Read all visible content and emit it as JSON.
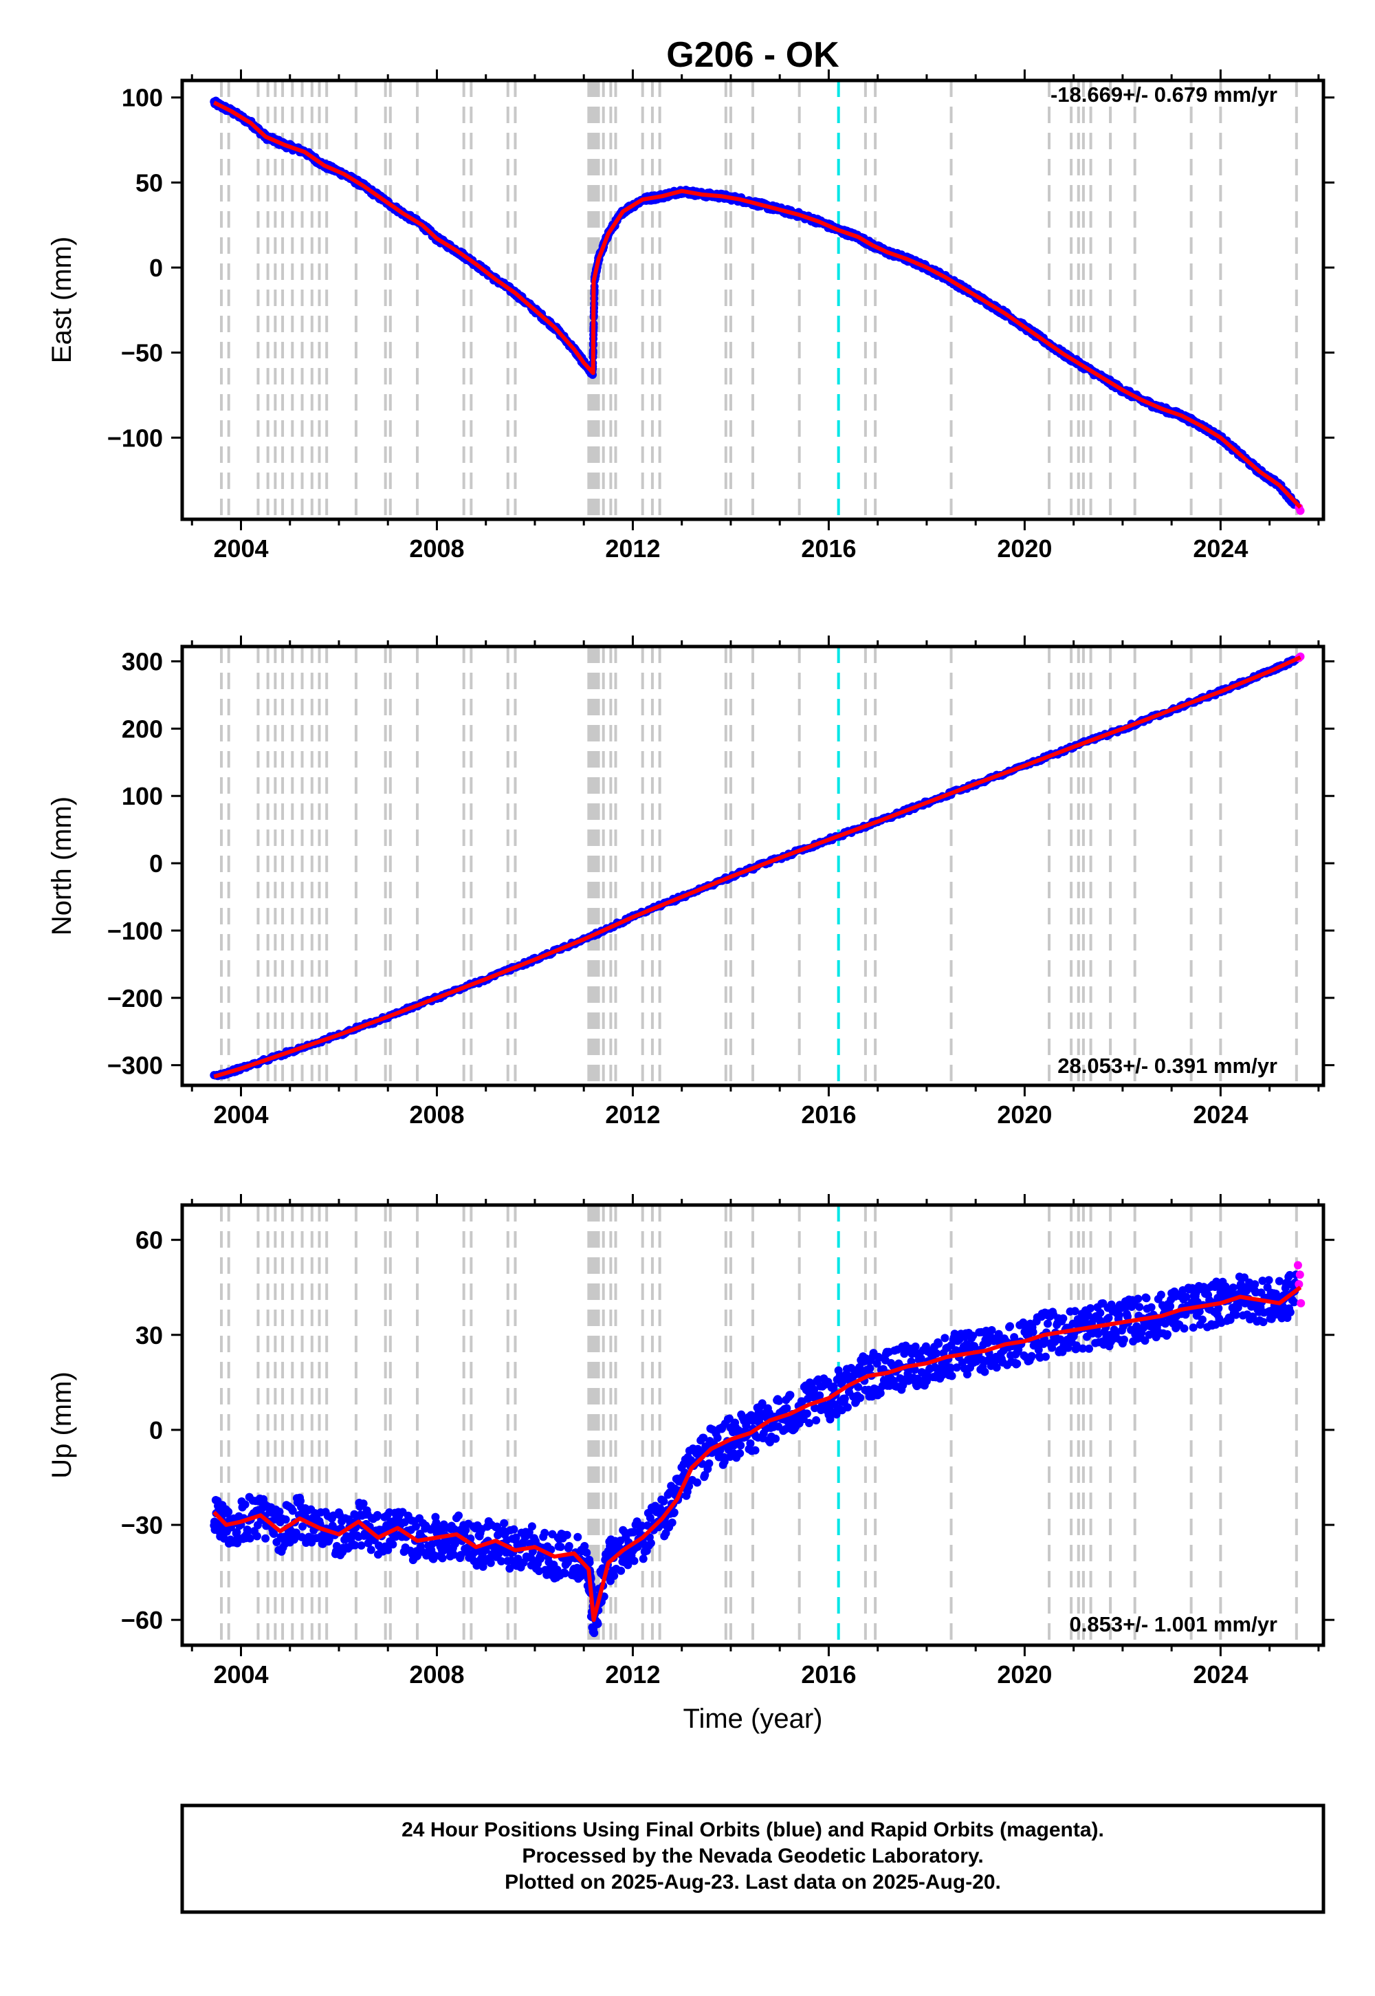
{
  "title": "G206 - OK",
  "x_axis_label": "Time (year)",
  "caption_lines": [
    "24 Hour Positions Using Final Orbits (blue) and Rapid Orbits (magenta).",
    "Processed by the Nevada Geodetic Laboratory.",
    "Plotted on 2025-Aug-23. Last data on 2025-Aug-20."
  ],
  "colors": {
    "final_orbits": "#0000ff",
    "rapid_orbits": "#ff00ff",
    "model": "#ff0000",
    "event_line": "#c8c8c8",
    "highlight_event_line": "#00e6e6"
  },
  "chart_data": [
    {
      "type": "scatter",
      "title": "G206 - OK",
      "ylabel": "East (mm)",
      "xlabel": "",
      "rate_annotation": "-18.669+/- 0.679 mm/yr",
      "xlim": [
        2002.8,
        2026.1
      ],
      "ylim": [
        -148,
        110
      ],
      "xticks": [
        "2004",
        "2008",
        "2012",
        "2016",
        "2020",
        "2024"
      ],
      "yticks": [
        "100",
        "50",
        "0",
        "−50",
        "−100"
      ],
      "ytick_values": [
        100,
        50,
        0,
        -50,
        -100
      ],
      "series": [
        {
          "name": "Final Orbits (blue)",
          "color": "#0000ff",
          "x": [
            2003.45,
            2003.8,
            2004.2,
            2004.5,
            2004.9,
            2005.3,
            2005.7,
            2006.1,
            2006.5,
            2006.9,
            2007.3,
            2007.7,
            2008.0,
            2008.4,
            2008.8,
            2009.2,
            2009.6,
            2010.0,
            2010.4,
            2010.8,
            2011.0,
            2011.18,
            2011.22,
            2011.3,
            2011.5,
            2011.8,
            2012.2,
            2012.6,
            2013.0,
            2013.4,
            2013.8,
            2014.2,
            2014.6,
            2015.0,
            2015.4,
            2015.8,
            2016.2,
            2016.6,
            2016.9,
            2017.2,
            2017.6,
            2018.0,
            2018.4,
            2018.8,
            2019.2,
            2019.6,
            2020.0,
            2020.4,
            2020.8,
            2021.2,
            2021.6,
            2022.0,
            2022.4,
            2022.8,
            2023.2,
            2023.6,
            2024.0,
            2024.4,
            2024.8,
            2025.2,
            2025.55
          ],
          "y": [
            97,
            92,
            85,
            77,
            72,
            68,
            60,
            55,
            48,
            40,
            32,
            25,
            17,
            10,
            2,
            -7,
            -15,
            -25,
            -35,
            -48,
            -56,
            -62,
            -7,
            5,
            20,
            33,
            40,
            42,
            45,
            43,
            42,
            40,
            37,
            34,
            31,
            27,
            22,
            18,
            13,
            9,
            5,
            0,
            -6,
            -13,
            -20,
            -27,
            -35,
            -43,
            -51,
            -58,
            -65,
            -72,
            -78,
            -83,
            -87,
            -93,
            -100,
            -110,
            -120,
            -128,
            -140
          ]
        },
        {
          "name": "Rapid Orbits (magenta)",
          "color": "#ff00ff",
          "x": [
            2025.6,
            2025.63
          ],
          "y": [
            -141,
            -143
          ]
        }
      ],
      "model": {
        "name": "Model",
        "color": "#ff0000",
        "x": [
          2003.45,
          2003.8,
          2004.2,
          2004.5,
          2004.9,
          2005.3,
          2005.7,
          2006.1,
          2006.5,
          2006.9,
          2007.3,
          2007.7,
          2008.0,
          2008.4,
          2008.8,
          2009.2,
          2009.6,
          2010.0,
          2010.4,
          2010.8,
          2011.0,
          2011.19,
          2011.2,
          2011.3,
          2011.5,
          2011.8,
          2012.2,
          2012.6,
          2013.0,
          2013.4,
          2013.8,
          2014.2,
          2014.6,
          2015.0,
          2015.4,
          2015.8,
          2016.2,
          2016.6,
          2016.9,
          2017.2,
          2017.6,
          2018.0,
          2018.4,
          2018.8,
          2019.2,
          2019.6,
          2020.0,
          2020.4,
          2020.8,
          2021.2,
          2021.6,
          2022.0,
          2022.4,
          2022.8,
          2023.2,
          2023.6,
          2024.0,
          2024.4,
          2024.8,
          2025.2,
          2025.63
        ],
        "y": [
          97,
          92,
          85,
          77,
          72,
          68,
          60,
          55,
          48,
          40,
          32,
          25,
          17,
          10,
          2,
          -7,
          -15,
          -25,
          -35,
          -48,
          -56,
          -62,
          -8,
          5,
          20,
          33,
          40,
          42,
          45,
          43,
          42,
          40,
          37,
          34,
          31,
          27,
          22,
          18,
          13,
          9,
          5,
          0,
          -6,
          -13,
          -20,
          -27,
          -35,
          -43,
          -51,
          -58,
          -65,
          -72,
          -78,
          -83,
          -87,
          -93,
          -100,
          -110,
          -120,
          -128,
          -141
        ]
      }
    },
    {
      "type": "scatter",
      "ylabel": "North (mm)",
      "xlabel": "",
      "rate_annotation": "28.053+/- 0.391 mm/yr",
      "xlim": [
        2002.8,
        2026.1
      ],
      "ylim": [
        -330,
        322
      ],
      "xticks": [
        "2004",
        "2008",
        "2012",
        "2016",
        "2020",
        "2024"
      ],
      "yticks": [
        "300",
        "200",
        "100",
        "0",
        "−100",
        "−200",
        "−300"
      ],
      "ytick_values": [
        300,
        200,
        100,
        0,
        -100,
        -200,
        -300
      ],
      "series": [
        {
          "name": "Final Orbits (blue)",
          "color": "#0000ff",
          "x": [
            2003.45,
            2004.0,
            2005.0,
            2006.0,
            2007.0,
            2008.0,
            2009.0,
            2010.0,
            2011.0,
            2012.0,
            2013.0,
            2014.0,
            2015.0,
            2016.0,
            2017.0,
            2018.0,
            2019.0,
            2020.0,
            2021.0,
            2022.0,
            2023.0,
            2024.0,
            2025.0,
            2025.55
          ],
          "y": [
            -317,
            -305,
            -280,
            -255,
            -228,
            -200,
            -172,
            -143,
            -113,
            -80,
            -50,
            -20,
            8,
            35,
            62,
            90,
            118,
            145,
            173,
            200,
            228,
            255,
            285,
            303
          ]
        },
        {
          "name": "Rapid Orbits (magenta)",
          "color": "#ff00ff",
          "x": [
            2025.6,
            2025.63
          ],
          "y": [
            305,
            307
          ]
        }
      ],
      "model": {
        "name": "Model",
        "color": "#ff0000",
        "x": [
          2003.45,
          2004.0,
          2005.0,
          2006.0,
          2007.0,
          2008.0,
          2009.0,
          2010.0,
          2011.0,
          2012.0,
          2013.0,
          2014.0,
          2015.0,
          2016.0,
          2017.0,
          2018.0,
          2019.0,
          2020.0,
          2021.0,
          2022.0,
          2023.0,
          2024.0,
          2025.0,
          2025.63
        ],
        "y": [
          -317,
          -305,
          -280,
          -255,
          -228,
          -200,
          -172,
          -143,
          -113,
          -80,
          -50,
          -20,
          8,
          35,
          62,
          90,
          118,
          145,
          173,
          200,
          228,
          255,
          285,
          306
        ]
      }
    },
    {
      "type": "scatter",
      "ylabel": "Up (mm)",
      "xlabel": "Time (year)",
      "rate_annotation": "0.853+/- 1.001 mm/yr",
      "xlim": [
        2002.8,
        2026.1
      ],
      "ylim": [
        -68,
        71
      ],
      "xticks": [
        "2004",
        "2008",
        "2012",
        "2016",
        "2020",
        "2024"
      ],
      "yticks": [
        "60",
        "30",
        "0",
        "−30",
        "−60"
      ],
      "ytick_values": [
        60,
        30,
        0,
        -30,
        -60
      ],
      "series": [
        {
          "name": "Final Orbits (blue)",
          "color": "#0000ff",
          "x": [
            2003.45,
            2003.7,
            2004.0,
            2004.4,
            2004.8,
            2005.2,
            2005.6,
            2006.0,
            2006.4,
            2006.8,
            2007.2,
            2007.6,
            2008.0,
            2008.4,
            2008.8,
            2009.2,
            2009.6,
            2010.0,
            2010.4,
            2010.8,
            2011.1,
            2011.2,
            2011.5,
            2011.8,
            2012.2,
            2012.6,
            2012.9,
            2013.2,
            2013.6,
            2014.0,
            2014.4,
            2014.8,
            2015.2,
            2015.6,
            2016.0,
            2016.4,
            2016.8,
            2017.2,
            2017.6,
            2018.0,
            2018.4,
            2018.8,
            2019.2,
            2019.6,
            2020.0,
            2020.4,
            2020.8,
            2021.2,
            2021.6,
            2022.0,
            2022.4,
            2022.8,
            2023.2,
            2023.6,
            2024.0,
            2024.4,
            2024.8,
            2025.2,
            2025.55
          ],
          "y": [
            -26,
            -30,
            -29,
            -27,
            -32,
            -28,
            -31,
            -33,
            -29,
            -34,
            -31,
            -35,
            -34,
            -33,
            -37,
            -35,
            -38,
            -37,
            -40,
            -39,
            -44,
            -60,
            -42,
            -38,
            -34,
            -28,
            -22,
            -12,
            -6,
            -3,
            -1,
            3,
            5,
            8,
            10,
            14,
            17,
            18,
            20,
            21,
            23,
            24,
            25,
            27,
            28,
            30,
            31,
            32,
            33,
            34,
            35,
            36,
            38,
            39,
            40,
            42,
            41,
            40,
            44
          ]
        },
        {
          "name": "Rapid Orbits (magenta)",
          "color": "#ff00ff",
          "x": [
            2025.58,
            2025.6,
            2025.62,
            2025.64
          ],
          "y": [
            52,
            46,
            49,
            40
          ]
        }
      ],
      "model": {
        "name": "Model",
        "color": "#ff0000",
        "x": [
          2003.45,
          2003.7,
          2004.0,
          2004.4,
          2004.8,
          2005.2,
          2005.6,
          2006.0,
          2006.4,
          2006.8,
          2007.2,
          2007.6,
          2008.0,
          2008.4,
          2008.8,
          2009.2,
          2009.6,
          2010.0,
          2010.4,
          2010.8,
          2011.1,
          2011.2,
          2011.5,
          2011.8,
          2012.2,
          2012.6,
          2012.9,
          2013.2,
          2013.6,
          2014.0,
          2014.4,
          2014.8,
          2015.2,
          2015.6,
          2016.0,
          2016.4,
          2016.8,
          2017.2,
          2017.6,
          2018.0,
          2018.4,
          2018.8,
          2019.2,
          2019.6,
          2020.0,
          2020.4,
          2020.8,
          2021.2,
          2021.6,
          2022.0,
          2022.4,
          2022.8,
          2023.2,
          2023.6,
          2024.0,
          2024.4,
          2024.8,
          2025.2,
          2025.63
        ],
        "y": [
          -26,
          -30,
          -29,
          -27,
          -32,
          -28,
          -31,
          -33,
          -29,
          -34,
          -31,
          -35,
          -34,
          -33,
          -37,
          -35,
          -38,
          -37,
          -40,
          -39,
          -44,
          -60,
          -42,
          -38,
          -34,
          -28,
          -22,
          -12,
          -6,
          -3,
          -1,
          3,
          5,
          8,
          10,
          14,
          17,
          18,
          20,
          21,
          23,
          24,
          25,
          27,
          28,
          30,
          31,
          32,
          33,
          34,
          35,
          36,
          38,
          39,
          40,
          42,
          41,
          40,
          45
        ]
      }
    }
  ],
  "event_lines": [
    2003.6,
    2003.75,
    2004.35,
    2004.55,
    2004.7,
    2004.85,
    2005.05,
    2005.25,
    2005.45,
    2005.6,
    2005.75,
    2006.35,
    2006.95,
    2007.05,
    2007.6,
    2008.55,
    2008.7,
    2009.45,
    2009.6,
    2011.1,
    2011.15,
    2011.2,
    2011.25,
    2011.3,
    2011.4,
    2011.55,
    2011.65,
    2012.2,
    2012.4,
    2012.55,
    2013.9,
    2014.0,
    2014.45,
    2015.4,
    2016.75,
    2016.95,
    2018.5,
    2020.5,
    2020.95,
    2021.1,
    2021.2,
    2021.35,
    2021.75,
    2022.25,
    2023.4,
    2024.0,
    2025.55
  ],
  "highlight_event_line": 2016.2
}
